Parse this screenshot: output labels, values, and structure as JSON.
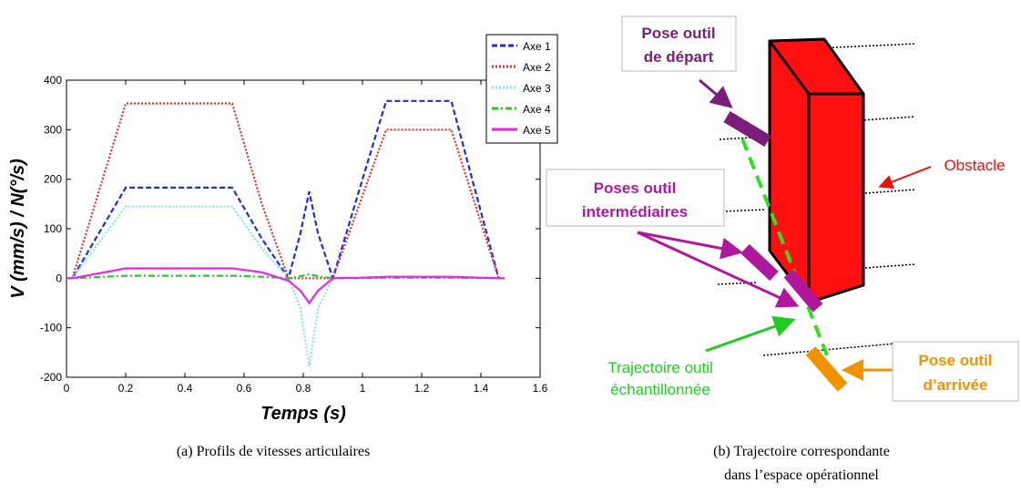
{
  "chart_data": {
    "type": "line",
    "xlabel": "Temps (s)",
    "ylabel": "V (mm/s) / N(°/s)",
    "x": [
      0,
      0.02,
      0.2,
      0.56,
      0.66,
      0.75,
      0.79,
      0.82,
      0.85,
      0.9,
      0.99,
      1.08,
      1.3,
      1.46,
      1.48
    ],
    "series": [
      {
        "name": "Axe 1",
        "color": "#1f2fd0",
        "style": "dashed",
        "values": [
          0,
          0,
          183,
          183,
          80,
          0,
          90,
          175,
          90,
          0,
          180,
          358,
          358,
          0,
          0
        ]
      },
      {
        "name": "Axe 2",
        "color": "#e03030",
        "style": "dotted",
        "values": [
          0,
          0,
          353,
          353,
          150,
          0,
          0,
          0,
          0,
          0,
          150,
          300,
          300,
          0,
          0
        ]
      },
      {
        "name": "Axe 3",
        "color": "#7fe8f0",
        "style": "dotted",
        "values": [
          0,
          0,
          145,
          145,
          60,
          0,
          -60,
          -178,
          -60,
          0,
          0,
          0,
          0,
          0,
          0
        ]
      },
      {
        "name": "Axe 4",
        "color": "#22cc22",
        "style": "dashdot",
        "values": [
          0,
          0,
          5,
          5,
          3,
          0,
          4,
          8,
          4,
          0,
          0,
          1,
          1,
          0,
          0
        ]
      },
      {
        "name": "Axe 5",
        "color": "#ee22ee",
        "style": "solid",
        "values": [
          0,
          0,
          20,
          20,
          12,
          -5,
          -25,
          -50,
          -25,
          0,
          1,
          3,
          3,
          0,
          0
        ]
      }
    ],
    "xlim": [
      0,
      1.6
    ],
    "xticks": [
      0,
      0.2,
      0.4,
      0.6,
      0.8,
      1,
      1.2,
      1.4,
      1.6
    ],
    "ylim": [
      -200,
      400
    ],
    "yticks": [
      -200,
      -100,
      0,
      100,
      200,
      300,
      400
    ],
    "grid": false,
    "legend": "upper right"
  },
  "diagram": {
    "start": [
      "Pose outil",
      "de départ"
    ],
    "obstacle": "Obstacle",
    "intermediate": [
      "Poses outil",
      "intermédiaires"
    ],
    "trajectory": [
      "Trajectoire outil",
      "échantillonnée"
    ],
    "end": [
      "Pose outil",
      "d’arrivée"
    ]
  },
  "captions": {
    "a": "(a) Profils de vitesses articulaires",
    "b": [
      "(b) Trajectoire correspondante",
      "dans l’espace opérationnel"
    ]
  }
}
